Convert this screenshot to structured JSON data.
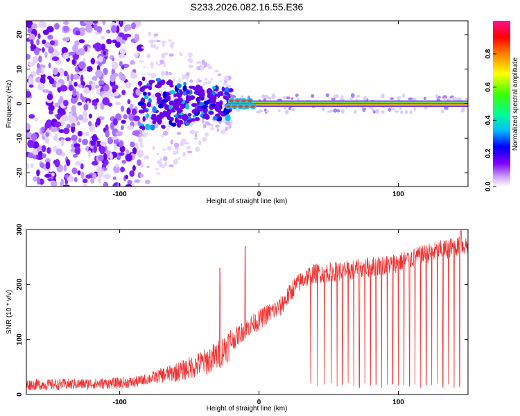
{
  "figure_title": "S233.2026.082.16.55.E36",
  "colors": {
    "snr_line": "#f03030",
    "axis": "#000000",
    "background": "#ffffff"
  },
  "chart_data": [
    {
      "type": "heatmap",
      "name": "spectrogram",
      "title": "S233.2026.082.16.55.E36",
      "xlabel": "Height of straight line (km)",
      "ylabel": "Frequency (Hz)",
      "xlim": [
        -167,
        150
      ],
      "ylim": [
        -24,
        24
      ],
      "xticks": [
        -100,
        0,
        100
      ],
      "yticks": [
        -20,
        -10,
        0,
        10,
        20
      ],
      "xtick_labels": [
        "-100",
        "0",
        "100"
      ],
      "ytick_labels": [
        "-20",
        "-10",
        "0",
        "10",
        "20"
      ],
      "carrier_frequency_hz": 0,
      "noise_region_km": [
        -167,
        -85
      ],
      "transition_region_km": [
        -85,
        -20
      ],
      "clean_region_km": [
        -20,
        150
      ],
      "grid": false
    },
    {
      "type": "colorbar",
      "name": "amplitude-colorbar",
      "label": "Normalized spectral amplitude",
      "range": [
        0,
        1
      ],
      "ticks": [
        0.0,
        0.2,
        0.4,
        0.6,
        0.8
      ],
      "tick_labels": [
        "0.0",
        "0.2",
        "0.4",
        "0.6",
        "0.8"
      ],
      "colormap": [
        "#ffffff",
        "#9b30ff",
        "#0000ff",
        "#00bfff",
        "#00ff80",
        "#40ff00",
        "#ffff00",
        "#ff8000",
        "#ff0000",
        "#ff1090"
      ]
    },
    {
      "type": "line",
      "name": "snr",
      "xlabel": "Height of straight line (km)",
      "ylabel": "SNR (10 * v/v)",
      "xlim": [
        -167,
        150
      ],
      "ylim": [
        0,
        300
      ],
      "xticks": [
        -100,
        0,
        100
      ],
      "yticks": [
        0,
        100,
        200,
        300
      ],
      "xtick_labels": [
        "-100",
        "0",
        "100"
      ],
      "ytick_labels": [
        "0",
        "100",
        "200",
        "300"
      ],
      "x": [
        -167,
        -150,
        -130,
        -110,
        -90,
        -80,
        -70,
        -60,
        -50,
        -40,
        -30,
        -25,
        -20,
        -15,
        -10,
        -5,
        0,
        5,
        10,
        15,
        20,
        25,
        30,
        35,
        40,
        50,
        60,
        70,
        80,
        90,
        100,
        110,
        120,
        130,
        140,
        150
      ],
      "values": [
        18,
        18,
        19,
        20,
        22,
        28,
        35,
        40,
        48,
        58,
        70,
        82,
        95,
        108,
        118,
        128,
        135,
        145,
        152,
        158,
        175,
        195,
        205,
        215,
        220,
        222,
        225,
        228,
        232,
        235,
        240,
        248,
        255,
        262,
        268,
        272
      ],
      "spikes": [
        {
          "x": -10,
          "value": 270
        },
        {
          "x": -28,
          "value": 230
        },
        {
          "x": 145,
          "value": 298
        }
      ],
      "dropouts_x": [
        37,
        42,
        47,
        52,
        56,
        60,
        64,
        68,
        72,
        76,
        80,
        84,
        88,
        92,
        96,
        100,
        104,
        108,
        112,
        116,
        120,
        124,
        128,
        132,
        136,
        140,
        144
      ],
      "dropout_value": 12,
      "grid": false
    }
  ]
}
